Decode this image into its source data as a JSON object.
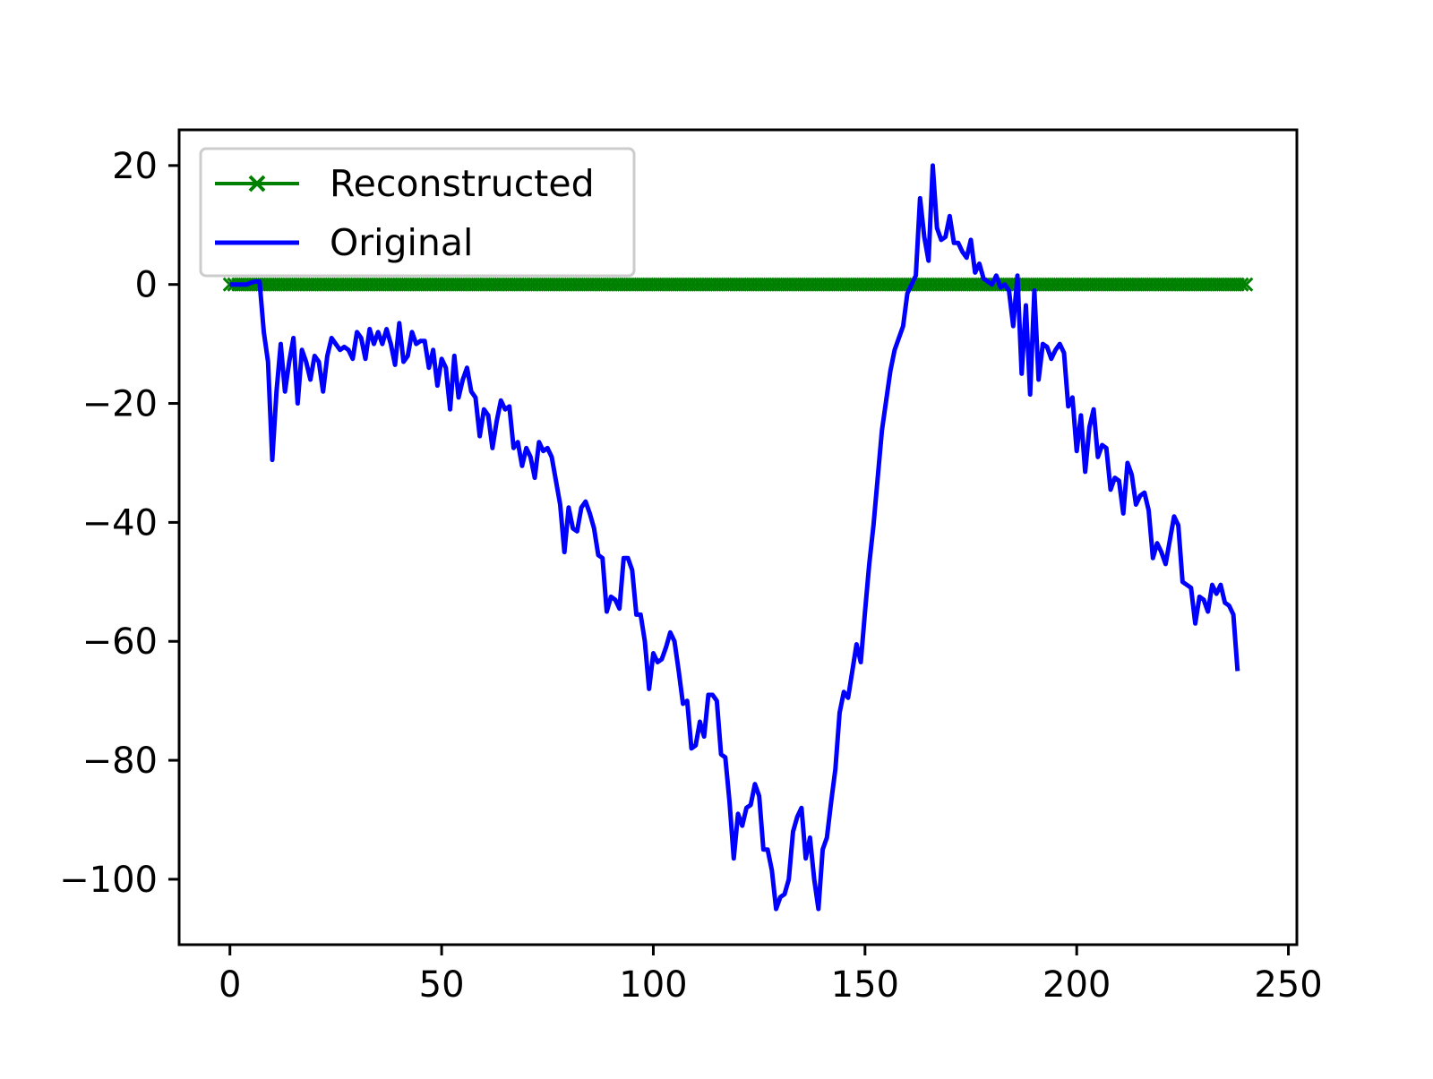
{
  "chart_data": {
    "type": "line",
    "title": "",
    "xlabel": "",
    "ylabel": "",
    "xlim": [
      -12,
      252
    ],
    "ylim": [
      -111,
      26
    ],
    "grid": false,
    "legend_position": "top-left",
    "x_ticks": [
      0,
      50,
      100,
      150,
      200,
      250
    ],
    "y_ticks": [
      20,
      0,
      -20,
      -40,
      -60,
      -80,
      -100
    ],
    "x_tick_labels": [
      "0",
      "50",
      "100",
      "150",
      "200",
      "250"
    ],
    "y_tick_labels": [
      "20",
      "0",
      "−20",
      "−40",
      "−60",
      "−80",
      "−100"
    ],
    "series": [
      {
        "name": "Reconstructed",
        "color": "#008000",
        "marker": "x",
        "x_start": 0,
        "x_end": 240,
        "x_step": 1,
        "constant_value": 0
      },
      {
        "name": "Original",
        "color": "#0000ff",
        "marker": "none",
        "points": [
          [
            0,
            0
          ],
          [
            1,
            0
          ],
          [
            2,
            0
          ],
          [
            3,
            0
          ],
          [
            4,
            0
          ],
          [
            5,
            0.3
          ],
          [
            6,
            0.5
          ],
          [
            7,
            0.5
          ],
          [
            8,
            -8
          ],
          [
            9,
            -13
          ],
          [
            10,
            -29.5
          ],
          [
            11,
            -18
          ],
          [
            12,
            -10
          ],
          [
            13,
            -18
          ],
          [
            14,
            -13
          ],
          [
            15,
            -9
          ],
          [
            16,
            -20
          ],
          [
            17,
            -11
          ],
          [
            18,
            -13
          ],
          [
            19,
            -16
          ],
          [
            20,
            -12
          ],
          [
            21,
            -13
          ],
          [
            22,
            -18
          ],
          [
            23,
            -12
          ],
          [
            24,
            -9
          ],
          [
            25,
            -10
          ],
          [
            26,
            -11
          ],
          [
            27,
            -10.5
          ],
          [
            28,
            -11
          ],
          [
            29,
            -12.5
          ],
          [
            30,
            -8
          ],
          [
            31,
            -9
          ],
          [
            32,
            -12.5
          ],
          [
            33,
            -7.5
          ],
          [
            34,
            -10
          ],
          [
            35,
            -8
          ],
          [
            36,
            -10
          ],
          [
            37,
            -7.5
          ],
          [
            38,
            -10
          ],
          [
            39,
            -13.5
          ],
          [
            40,
            -6.5
          ],
          [
            41,
            -13
          ],
          [
            42,
            -12
          ],
          [
            43,
            -8
          ],
          [
            44,
            -10
          ],
          [
            45,
            -9.5
          ],
          [
            46,
            -9.5
          ],
          [
            47,
            -14
          ],
          [
            48,
            -11
          ],
          [
            49,
            -17
          ],
          [
            50,
            -12.5
          ],
          [
            51,
            -14
          ],
          [
            52,
            -21
          ],
          [
            53,
            -12
          ],
          [
            54,
            -19
          ],
          [
            55,
            -16
          ],
          [
            56,
            -14
          ],
          [
            57,
            -18
          ],
          [
            58,
            -19
          ],
          [
            59,
            -25.5
          ],
          [
            60,
            -21
          ],
          [
            61,
            -22
          ],
          [
            62,
            -27.5
          ],
          [
            63,
            -23
          ],
          [
            64,
            -19.5
          ],
          [
            65,
            -21
          ],
          [
            66,
            -20.5
          ],
          [
            67,
            -27.5
          ],
          [
            68,
            -26.5
          ],
          [
            69,
            -30.5
          ],
          [
            70,
            -27.5
          ],
          [
            71,
            -29
          ],
          [
            72,
            -32.5
          ],
          [
            73,
            -26.5
          ],
          [
            74,
            -28
          ],
          [
            75,
            -27.5
          ],
          [
            76,
            -29
          ],
          [
            77,
            -33
          ],
          [
            78,
            -37
          ],
          [
            79,
            -45
          ],
          [
            80,
            -37.5
          ],
          [
            81,
            -41
          ],
          [
            82,
            -41.5
          ],
          [
            83,
            -37.5
          ],
          [
            84,
            -36.5
          ],
          [
            85,
            -38.5
          ],
          [
            86,
            -41
          ],
          [
            87,
            -45.5
          ],
          [
            88,
            -46
          ],
          [
            89,
            -55
          ],
          [
            90,
            -52.5
          ],
          [
            91,
            -53
          ],
          [
            92,
            -54.5
          ],
          [
            93,
            -46
          ],
          [
            94,
            -46
          ],
          [
            95,
            -48
          ],
          [
            96,
            -55.5
          ],
          [
            97,
            -55.5
          ],
          [
            98,
            -60
          ],
          [
            99,
            -68
          ],
          [
            100,
            -62
          ],
          [
            101,
            -63.5
          ],
          [
            102,
            -63
          ],
          [
            103,
            -61
          ],
          [
            104,
            -58.5
          ],
          [
            105,
            -60
          ],
          [
            106,
            -65
          ],
          [
            107,
            -70.5
          ],
          [
            108,
            -70
          ],
          [
            109,
            -78
          ],
          [
            110,
            -77.5
          ],
          [
            111,
            -73.5
          ],
          [
            112,
            -76
          ],
          [
            113,
            -69
          ],
          [
            114,
            -69
          ],
          [
            115,
            -70
          ],
          [
            116,
            -79
          ],
          [
            117,
            -79.5
          ],
          [
            118,
            -87
          ],
          [
            119,
            -96.5
          ],
          [
            120,
            -89
          ],
          [
            121,
            -91
          ],
          [
            122,
            -88
          ],
          [
            123,
            -87.5
          ],
          [
            124,
            -84
          ],
          [
            125,
            -86
          ],
          [
            126,
            -95
          ],
          [
            127,
            -95
          ],
          [
            128,
            -98.5
          ],
          [
            129,
            -105
          ],
          [
            130,
            -103
          ],
          [
            131,
            -102.5
          ],
          [
            132,
            -100
          ],
          [
            133,
            -92
          ],
          [
            134,
            -89.5
          ],
          [
            135,
            -88
          ],
          [
            136,
            -96.5
          ],
          [
            137,
            -93
          ],
          [
            138,
            -100
          ],
          [
            139,
            -105
          ],
          [
            140,
            -95
          ],
          [
            141,
            -93
          ],
          [
            142,
            -87
          ],
          [
            143,
            -81.5
          ],
          [
            144,
            -72
          ],
          [
            145,
            -68.5
          ],
          [
            146,
            -69.5
          ],
          [
            147,
            -65
          ],
          [
            148,
            -60.5
          ],
          [
            149,
            -63.5
          ],
          [
            150,
            -55
          ],
          [
            151,
            -47
          ],
          [
            152,
            -40.5
          ],
          [
            153,
            -32.5
          ],
          [
            154,
            -24.5
          ],
          [
            155,
            -19.5
          ],
          [
            156,
            -14.5
          ],
          [
            157,
            -11
          ],
          [
            158,
            -9
          ],
          [
            159,
            -7
          ],
          [
            160,
            -1.5
          ],
          [
            161,
            0
          ],
          [
            162,
            1.5
          ],
          [
            163,
            14.5
          ],
          [
            164,
            8
          ],
          [
            165,
            4
          ],
          [
            166,
            20
          ],
          [
            167,
            9.5
          ],
          [
            168,
            7.5
          ],
          [
            169,
            8
          ],
          [
            170,
            11.5
          ],
          [
            171,
            7
          ],
          [
            172,
            7
          ],
          [
            173,
            5.5
          ],
          [
            174,
            4.5
          ],
          [
            175,
            7.5
          ],
          [
            176,
            2
          ],
          [
            177,
            3.5
          ],
          [
            178,
            1
          ],
          [
            179,
            0.5
          ],
          [
            180,
            0
          ],
          [
            181,
            1.5
          ],
          [
            182,
            -0.5
          ],
          [
            183,
            0
          ],
          [
            184,
            -1
          ],
          [
            185,
            -7
          ],
          [
            186,
            1.5
          ],
          [
            187,
            -15
          ],
          [
            188,
            -3.5
          ],
          [
            189,
            -18.5
          ],
          [
            190,
            -1
          ],
          [
            191,
            -16
          ],
          [
            192,
            -10
          ],
          [
            193,
            -10.5
          ],
          [
            194,
            -12.5
          ],
          [
            195,
            -11
          ],
          [
            196,
            -10
          ],
          [
            197,
            -11.5
          ],
          [
            198,
            -20.5
          ],
          [
            199,
            -19
          ],
          [
            200,
            -28
          ],
          [
            201,
            -22
          ],
          [
            202,
            -31.5
          ],
          [
            203,
            -24
          ],
          [
            204,
            -21
          ],
          [
            205,
            -29
          ],
          [
            206,
            -27
          ],
          [
            207,
            -27.5
          ],
          [
            208,
            -34.5
          ],
          [
            209,
            -32.5
          ],
          [
            210,
            -33
          ],
          [
            211,
            -38.5
          ],
          [
            212,
            -30
          ],
          [
            213,
            -32
          ],
          [
            214,
            -37
          ],
          [
            215,
            -35.5
          ],
          [
            216,
            -35
          ],
          [
            217,
            -38
          ],
          [
            218,
            -46
          ],
          [
            219,
            -43.5
          ],
          [
            220,
            -45
          ],
          [
            221,
            -47
          ],
          [
            222,
            -43
          ],
          [
            223,
            -39
          ],
          [
            224,
            -40.5
          ],
          [
            225,
            -50
          ],
          [
            226,
            -50.5
          ],
          [
            227,
            -51
          ],
          [
            228,
            -57
          ],
          [
            229,
            -52.5
          ],
          [
            230,
            -53
          ],
          [
            231,
            -55
          ],
          [
            232,
            -50.5
          ],
          [
            233,
            -52
          ],
          [
            234,
            -50.5
          ],
          [
            235,
            -53.5
          ],
          [
            236,
            -54
          ],
          [
            237,
            -55.5
          ],
          [
            238,
            -65
          ]
        ]
      }
    ]
  }
}
